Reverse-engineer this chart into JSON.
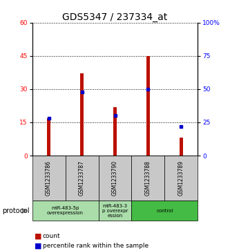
{
  "title": "GDS5347 / 237334_at",
  "samples": [
    "GSM1233786",
    "GSM1233787",
    "GSM1233790",
    "GSM1233788",
    "GSM1233789"
  ],
  "counts": [
    17,
    37,
    22,
    45,
    8
  ],
  "percentiles": [
    28,
    48,
    30,
    50,
    22
  ],
  "left_ylim": [
    0,
    60
  ],
  "right_ylim": [
    0,
    100
  ],
  "left_yticks": [
    0,
    15,
    30,
    45,
    60
  ],
  "right_yticks": [
    0,
    25,
    50,
    75,
    100
  ],
  "right_yticklabels": [
    "0",
    "25",
    "50",
    "75",
    "100%"
  ],
  "bar_color": "#BB1100",
  "dot_color": "#0000CC",
  "grid_color": "#000000",
  "bg_color": "#FFFFFF",
  "plot_bg": "#FFFFFF",
  "gray_box_color": "#C8C8C8",
  "groups": [
    {
      "label": "miR-483-5p\noverexpression",
      "start": 0,
      "end": 2,
      "color": "#AADDAA"
    },
    {
      "label": "miR-483-3\np overexpr\nession",
      "start": 2,
      "end": 3,
      "color": "#AADDAA"
    },
    {
      "label": "control",
      "start": 3,
      "end": 5,
      "color": "#44BB44"
    }
  ],
  "protocol_label": "protocol",
  "legend_count_label": "count",
  "legend_pct_label": "percentile rank within the sample",
  "title_fontsize": 10,
  "tick_fontsize": 6.5,
  "label_fontsize": 7.5
}
